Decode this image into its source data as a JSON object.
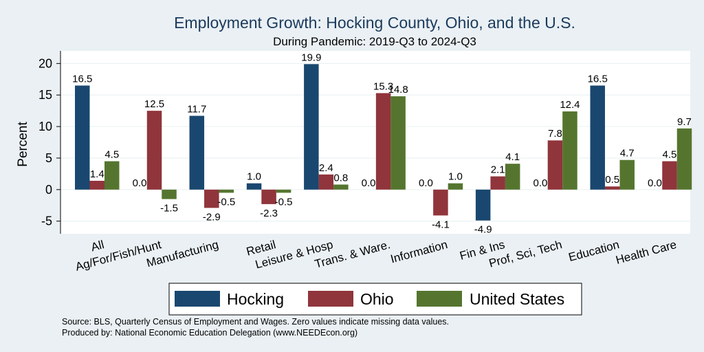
{
  "chart_data": {
    "type": "bar",
    "title": "Employment Growth: Hocking County, Ohio, and the U.S.",
    "subtitle": "During Pandemic: 2019-Q3 to 2024-Q3",
    "ylabel": "Percent",
    "xlabel": "",
    "ylim": [
      -7,
      22
    ],
    "yticks": [
      20,
      15,
      10,
      5,
      0,
      -5
    ],
    "grid": true,
    "legend_position": "bottom",
    "categories": [
      "All",
      "Ag/For/Fish/Hunt",
      "Manufacturing",
      "Retail",
      "Leisure & Hosp",
      "Trans. & Ware.",
      "Information",
      "Fin & Ins",
      "Prof, Sci, Tech",
      "Education",
      "Health Care"
    ],
    "series": [
      {
        "name": "Hocking",
        "color": "#1a476f",
        "values": [
          16.5,
          0.0,
          11.7,
          1.0,
          19.9,
          0.0,
          0.0,
          -4.9,
          0.0,
          16.5,
          0.0
        ]
      },
      {
        "name": "Ohio",
        "color": "#90353b",
        "values": [
          1.4,
          12.5,
          -2.9,
          -2.3,
          2.4,
          15.3,
          -4.1,
          2.1,
          7.8,
          0.5,
          4.5
        ]
      },
      {
        "name": "United States",
        "color": "#55752f",
        "values": [
          4.5,
          -1.5,
          -0.5,
          -0.5,
          0.8,
          14.8,
          1.0,
          4.1,
          12.4,
          4.7,
          9.7
        ]
      }
    ],
    "data_labels": [
      [
        "16.5",
        "0.0",
        "11.7",
        "1.0",
        "19.9",
        "0.0",
        "0.0",
        "-4.9",
        "0.0",
        "16.5",
        "0.0"
      ],
      [
        "1.4",
        "12.5",
        "-2.9",
        "-2.3",
        "2.4",
        "15.3",
        "-4.1",
        "2.1",
        "7.8",
        "0.5",
        "4.5"
      ],
      [
        "4.5",
        "-1.5",
        "-0.5",
        "-0.5",
        "0.8",
        "14.8",
        "1.0",
        "4.1",
        "12.4",
        "4.7",
        "9.7"
      ]
    ]
  },
  "footer": {
    "source": "Source: BLS, Quarterly Census of Employment and Wages. Zero values indicate missing data values.",
    "produced": "Produced by: National Economic Education Delegation (www.NEEDEcon.org)"
  },
  "colors": {
    "background": "#eaf0f4",
    "plot_background": "#ffffff",
    "grid": "#eaf2f3",
    "title": "#1a3a5c"
  }
}
